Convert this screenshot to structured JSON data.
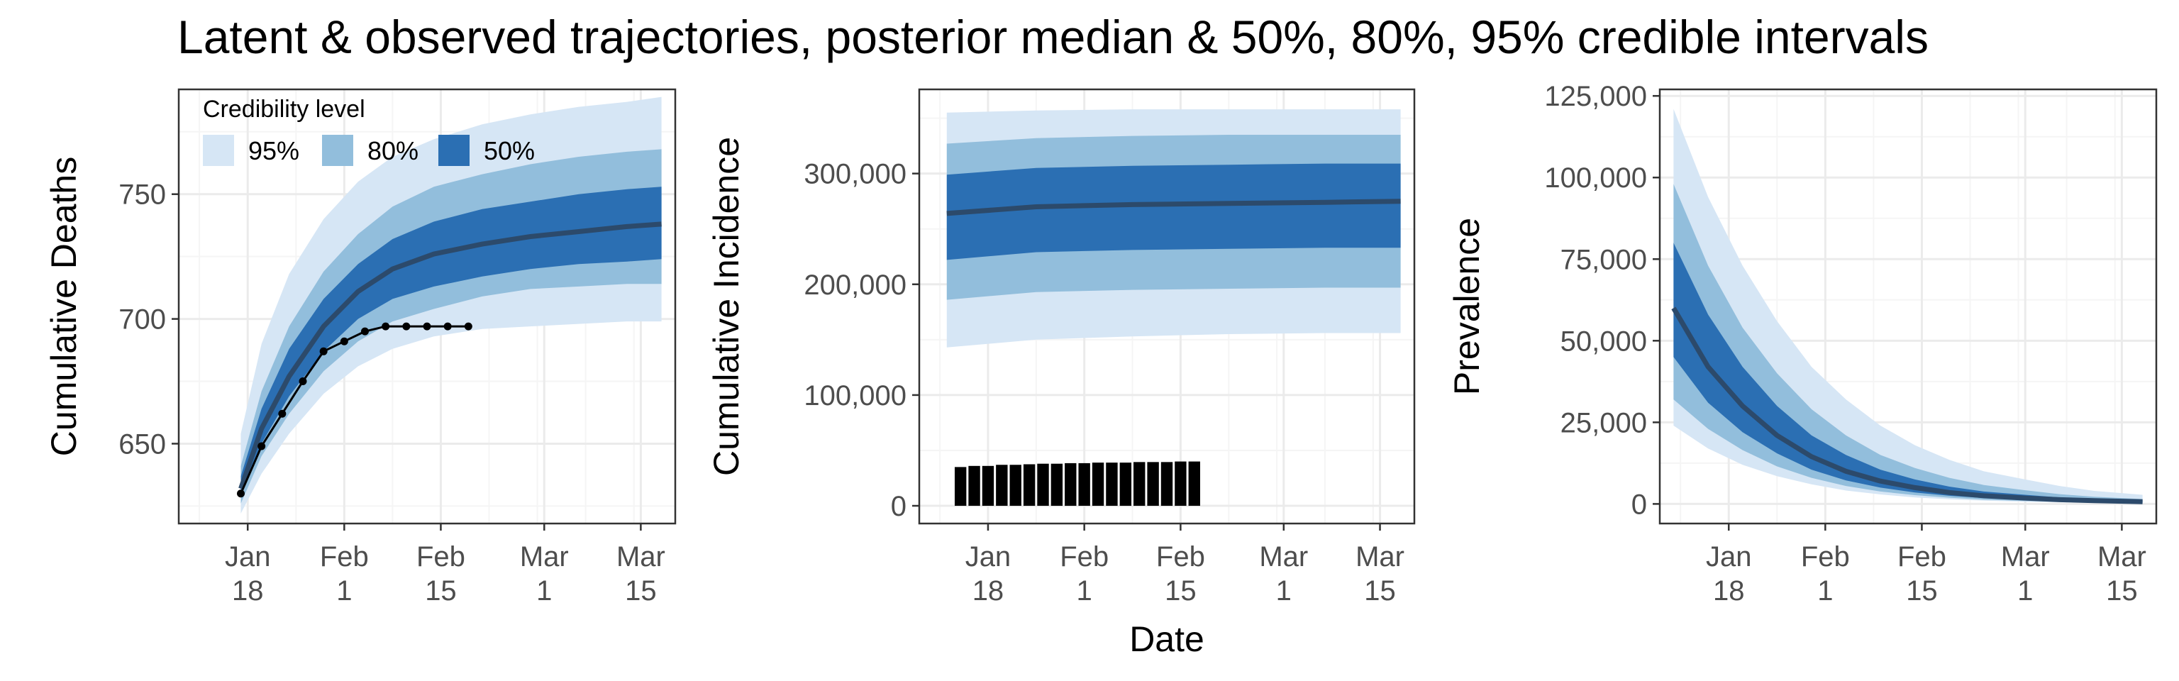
{
  "title": "Latent & observed trajectories, posterior median & 50%, 80%, 95% credible intervals",
  "colors": {
    "band95": "#d6e6f5",
    "band80": "#92bedc",
    "band50": "#2b6fb3",
    "median": "#2c4a6b",
    "observed": "#000000",
    "grid_major": "#ebebeb",
    "grid_minor": "#f5f5f5"
  },
  "legend": {
    "title": "Credibility level",
    "items": [
      {
        "label": "95%",
        "color": "#d6e6f5"
      },
      {
        "label": "80%",
        "color": "#92bedc"
      },
      {
        "label": "50%",
        "color": "#2b6fb3"
      }
    ],
    "placement": "top-left inside panel 1"
  },
  "chart_data": [
    {
      "type": "area",
      "panel": "Cumulative Deaths",
      "xlabel": "",
      "ylabel": "Cumulative Deaths",
      "xlim": [
        "2020-01-08",
        "2020-03-20"
      ],
      "ylim": [
        618,
        792
      ],
      "x_ticks": [
        {
          "date": "2020-01-18",
          "label": "Jan\n18"
        },
        {
          "date": "2020-02-01",
          "label": "Feb\n1"
        },
        {
          "date": "2020-02-15",
          "label": "Feb\n15"
        },
        {
          "date": "2020-03-01",
          "label": "Mar\n1"
        },
        {
          "date": "2020-03-15",
          "label": "Mar\n15"
        }
      ],
      "y_ticks": [
        {
          "value": 650,
          "label": "650"
        },
        {
          "value": 700,
          "label": "700"
        },
        {
          "value": 750,
          "label": "750"
        }
      ],
      "grid": true,
      "series_bands": {
        "x": [
          "2020-01-17",
          "2020-01-20",
          "2020-01-24",
          "2020-01-29",
          "2020-02-03",
          "2020-02-08",
          "2020-02-14",
          "2020-02-21",
          "2020-02-28",
          "2020-03-06",
          "2020-03-13",
          "2020-03-18"
        ],
        "median": [
          632,
          656,
          677,
          697,
          711,
          720,
          726,
          730,
          733,
          735,
          737,
          738
        ],
        "lower50": [
          629,
          650,
          669,
          687,
          700,
          708,
          713,
          717,
          720,
          722,
          723,
          724
        ],
        "upper50": [
          637,
          664,
          688,
          708,
          722,
          732,
          739,
          744,
          747,
          750,
          752,
          753
        ],
        "lower80": [
          626,
          645,
          662,
          679,
          691,
          699,
          704,
          709,
          712,
          713,
          714,
          714
        ],
        "upper80": [
          641,
          671,
          697,
          719,
          734,
          745,
          753,
          758,
          762,
          765,
          767,
          768
        ],
        "lower95": [
          622,
          638,
          654,
          670,
          681,
          688,
          693,
          696,
          697,
          698,
          699,
          699
        ],
        "upper95": [
          654,
          690,
          718,
          740,
          755,
          765,
          772,
          778,
          782,
          785,
          787,
          789
        ]
      },
      "observed": {
        "x": [
          "2020-01-17",
          "2020-01-20",
          "2020-01-23",
          "2020-01-26",
          "2020-01-29",
          "2020-02-01",
          "2020-02-04",
          "2020-02-07",
          "2020-02-10",
          "2020-02-13",
          "2020-02-16",
          "2020-02-19"
        ],
        "y": [
          630,
          649,
          662,
          675,
          687,
          691,
          695,
          697,
          697,
          697,
          697,
          697
        ]
      }
    },
    {
      "type": "area",
      "panel": "Cumulative Incidence",
      "xlabel": "Date",
      "ylabel": "Cumulative Incidence",
      "xlim": [
        "2020-01-08",
        "2020-03-20"
      ],
      "ylim": [
        -16000,
        376000
      ],
      "x_ticks": [
        {
          "date": "2020-01-18",
          "label": "Jan\n18"
        },
        {
          "date": "2020-02-01",
          "label": "Feb\n1"
        },
        {
          "date": "2020-02-15",
          "label": "Feb\n15"
        },
        {
          "date": "2020-03-01",
          "label": "Mar\n1"
        },
        {
          "date": "2020-03-15",
          "label": "Mar\n15"
        }
      ],
      "y_ticks": [
        {
          "value": 0,
          "label": "0"
        },
        {
          "value": 100000,
          "label": "100,000"
        },
        {
          "value": 200000,
          "label": "200,000"
        },
        {
          "value": 300000,
          "label": "300,000"
        }
      ],
      "grid": true,
      "series_bands": {
        "x": [
          "2020-01-12",
          "2020-01-25",
          "2020-02-08",
          "2020-02-22",
          "2020-03-07",
          "2020-03-18"
        ],
        "median": [
          264000,
          270000,
          272000,
          273000,
          274000,
          275000
        ],
        "lower50": [
          222000,
          229000,
          231000,
          232000,
          233000,
          233000
        ],
        "upper50": [
          299000,
          305000,
          307000,
          308000,
          309000,
          309000
        ],
        "lower80": [
          186000,
          193000,
          195000,
          196000,
          197000,
          197000
        ],
        "upper80": [
          327000,
          332000,
          334000,
          335000,
          335000,
          335000
        ],
        "lower95": [
          143000,
          150000,
          153000,
          155000,
          156000,
          156000
        ],
        "upper95": [
          355000,
          357000,
          358000,
          358000,
          358000,
          358000
        ]
      },
      "observed_bars": {
        "x": [
          "2020-01-14",
          "2020-01-16",
          "2020-01-18",
          "2020-01-20",
          "2020-01-22",
          "2020-01-24",
          "2020-01-26",
          "2020-01-28",
          "2020-01-30",
          "2020-02-01",
          "2020-02-03",
          "2020-02-05",
          "2020-02-07",
          "2020-02-09",
          "2020-02-11",
          "2020-02-13",
          "2020-02-15",
          "2020-02-17"
        ],
        "y": [
          35000,
          36000,
          36000,
          37000,
          37000,
          37500,
          38000,
          38000,
          38500,
          38500,
          39000,
          39000,
          39000,
          39500,
          39500,
          39500,
          40000,
          40000
        ]
      }
    },
    {
      "type": "area",
      "panel": "Prevalence",
      "xlabel": "",
      "ylabel": "Prevalence",
      "xlim": [
        "2020-01-08",
        "2020-03-20"
      ],
      "ylim": [
        -6000,
        127000
      ],
      "x_ticks": [
        {
          "date": "2020-01-18",
          "label": "Jan\n18"
        },
        {
          "date": "2020-02-01",
          "label": "Feb\n1"
        },
        {
          "date": "2020-02-15",
          "label": "Feb\n15"
        },
        {
          "date": "2020-03-01",
          "label": "Mar\n1"
        },
        {
          "date": "2020-03-15",
          "label": "Mar\n15"
        }
      ],
      "y_ticks": [
        {
          "value": 0,
          "label": "0"
        },
        {
          "value": 25000,
          "label": "25,000"
        },
        {
          "value": 50000,
          "label": "50,000"
        },
        {
          "value": 75000,
          "label": "75,000"
        },
        {
          "value": 100000,
          "label": "100,000"
        },
        {
          "value": 125000,
          "label": "125,000"
        }
      ],
      "grid": true,
      "series_bands": {
        "x": [
          "2020-01-10",
          "2020-01-15",
          "2020-01-20",
          "2020-01-25",
          "2020-01-30",
          "2020-02-04",
          "2020-02-09",
          "2020-02-14",
          "2020-02-19",
          "2020-02-24",
          "2020-03-01",
          "2020-03-06",
          "2020-03-11",
          "2020-03-18"
        ],
        "median": [
          60000,
          42000,
          30000,
          21000,
          14500,
          10000,
          7000,
          5000,
          3500,
          2500,
          1800,
          1300,
          1000,
          700
        ],
        "lower50": [
          45000,
          31000,
          22000,
          15500,
          10500,
          7200,
          5000,
          3500,
          2500,
          1800,
          1200,
          900,
          700,
          450
        ],
        "upper50": [
          80000,
          58000,
          42000,
          30000,
          21000,
          15000,
          10500,
          7500,
          5300,
          3800,
          2800,
          2000,
          1500,
          1000
        ],
        "lower80": [
          32000,
          23000,
          16500,
          11500,
          8000,
          5500,
          3800,
          2700,
          1900,
          1300,
          900,
          650,
          450,
          300
        ],
        "upper80": [
          98000,
          73000,
          54000,
          40000,
          29000,
          21000,
          15000,
          11000,
          8000,
          5800,
          4200,
          3000,
          2200,
          1500
        ],
        "lower95": [
          24000,
          17000,
          12000,
          8500,
          6000,
          4100,
          2900,
          2000,
          1400,
          1000,
          700,
          500,
          350,
          200
        ],
        "upper95": [
          121000,
          94000,
          73000,
          56000,
          42000,
          32000,
          24000,
          18000,
          13500,
          10000,
          7500,
          5500,
          4000,
          2800
        ]
      }
    }
  ]
}
